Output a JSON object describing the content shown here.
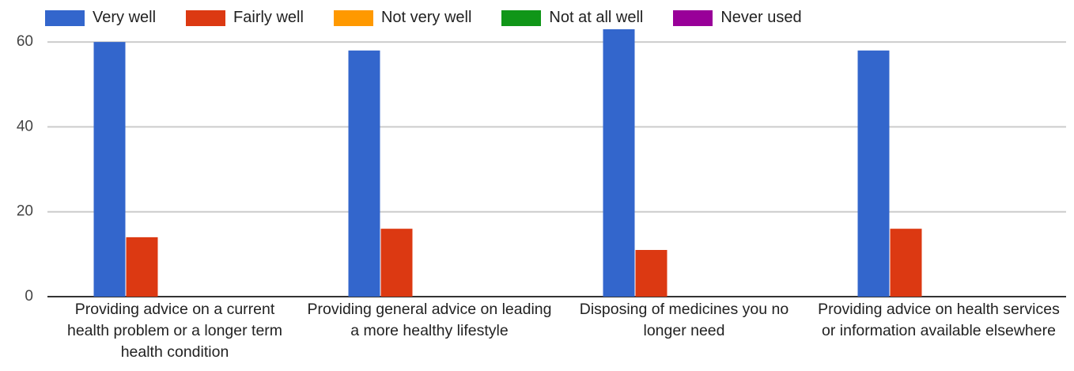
{
  "chart_data": {
    "type": "bar",
    "categories": [
      "Providing advice on a current health problem or a longer term health condition",
      "Providing general advice on leading a more healthy lifestyle",
      "Disposing of medicines you no longer need",
      "Providing advice on health services or information available elsewhere"
    ],
    "series": [
      {
        "name": "Very well",
        "color": "#3366cc",
        "values": [
          60,
          58,
          63,
          58
        ]
      },
      {
        "name": "Fairly well",
        "color": "#dc3912",
        "values": [
          14,
          16,
          11,
          16
        ]
      },
      {
        "name": "Not very well",
        "color": "#ff9900",
        "values": [
          0,
          0,
          0,
          0
        ]
      },
      {
        "name": "Not at all well",
        "color": "#109618",
        "values": [
          0,
          0,
          0,
          0
        ]
      },
      {
        "name": "Never used",
        "color": "#990099",
        "values": [
          0,
          0,
          0,
          0
        ]
      }
    ],
    "ylim": [
      0,
      63
    ],
    "yticks": [
      0,
      20,
      40,
      60
    ],
    "grid": true,
    "legend": "top"
  }
}
